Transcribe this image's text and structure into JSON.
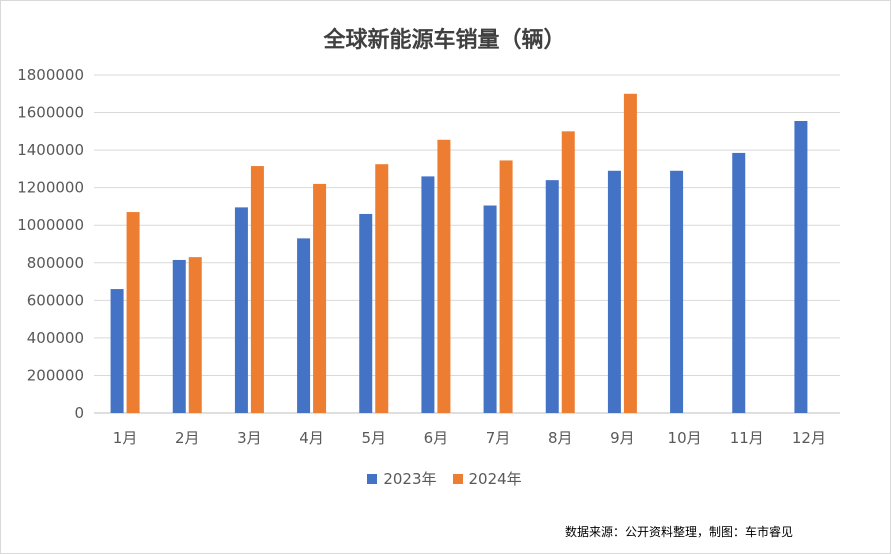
{
  "chart_data": {
    "type": "bar",
    "title": "全球新能源车销量（辆）",
    "categories": [
      "1月",
      "2月",
      "3月",
      "4月",
      "5月",
      "6月",
      "7月",
      "8月",
      "9月",
      "10月",
      "11月",
      "12月"
    ],
    "series": [
      {
        "name": "2023年",
        "color": "#4472C4",
        "values": [
          660000,
          815000,
          1095000,
          930000,
          1060000,
          1260000,
          1105000,
          1240000,
          1290000,
          1290000,
          1385000,
          1555000
        ]
      },
      {
        "name": "2024年",
        "color": "#ED7D31",
        "values": [
          1070000,
          830000,
          1315000,
          1220000,
          1325000,
          1455000,
          1345000,
          1500000,
          1700000,
          null,
          null,
          null
        ]
      }
    ],
    "ylim": [
      0,
      1800000
    ],
    "yticks": [
      "0",
      "200000",
      "400000",
      "600000",
      "800000",
      "1000000",
      "1200000",
      "1400000",
      "1600000",
      "1800000"
    ],
    "grid": true,
    "legend": "bottom"
  },
  "source_note": "数据来源：公开资料整理，制图：车市睿见"
}
